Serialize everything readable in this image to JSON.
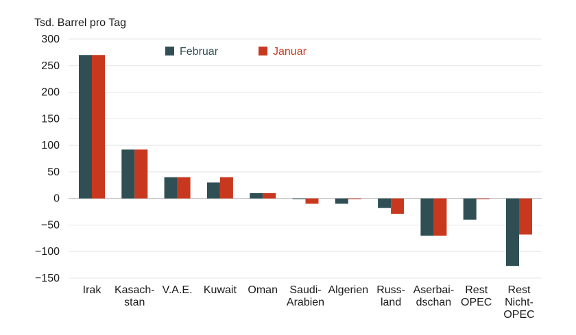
{
  "chart_data": {
    "type": "bar",
    "ylabel": "Tsd. Barrel pro Tag",
    "ylim": [
      -150,
      300
    ],
    "yticks": [
      300,
      250,
      200,
      150,
      100,
      50,
      0,
      -50,
      -100,
      -150
    ],
    "ytick_labels": [
      "300",
      "250",
      "200",
      "150",
      "100",
      "50",
      "0",
      "−50",
      "−100",
      "−150"
    ],
    "grid": true,
    "legend_position": "top",
    "categories": [
      [
        "Irak"
      ],
      [
        "Kasach-",
        "stan"
      ],
      [
        "V.A.E."
      ],
      [
        "Kuwait"
      ],
      [
        "Oman"
      ],
      [
        "Saudi-",
        "Arabien"
      ],
      [
        "Algerien"
      ],
      [
        "Russ-",
        "land"
      ],
      [
        "Aserbai-",
        "dschan"
      ],
      [
        "Rest",
        "OPEC"
      ],
      [
        "Rest",
        "Nicht-",
        "OPEC"
      ]
    ],
    "series": [
      {
        "name": "Februar",
        "color": "#2f4f54",
        "values": [
          270,
          92,
          40,
          30,
          10,
          -1,
          -10,
          -18,
          -70,
          -40,
          -127
        ]
      },
      {
        "name": "Januar",
        "color": "#c8381f",
        "values": [
          270,
          92,
          40,
          40,
          10,
          -10,
          -1,
          -29,
          -70,
          -1,
          -68
        ]
      }
    ]
  }
}
